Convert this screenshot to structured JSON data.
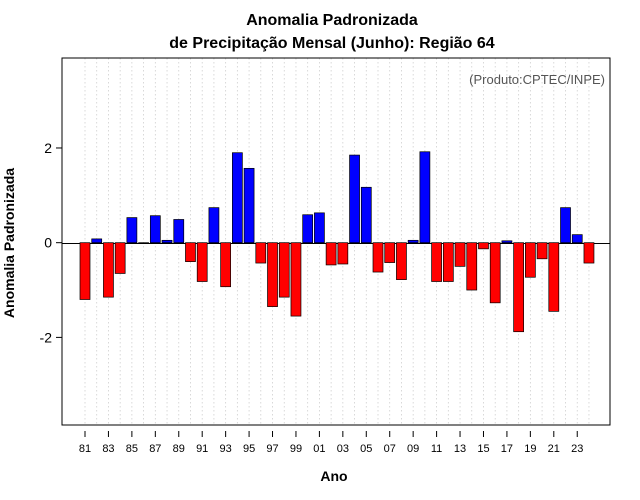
{
  "chart_data": {
    "type": "bar",
    "title": "Anomalia Padronizada",
    "subtitle": "de Precipitação Mensal (Junho): Região 64",
    "xlabel": "Ano",
    "ylabel": "Anomalia Padronizada",
    "annotation": "(Produto:CPTEC/INPE)",
    "ylim": [
      -3.85,
      3.9
    ],
    "yticks": [
      -2,
      0,
      2
    ],
    "ytick_labels": [
      "-2",
      "0",
      "2"
    ],
    "grid": "vertical dotted",
    "categories": [
      "81",
      "82",
      "83",
      "84",
      "85",
      "86",
      "87",
      "88",
      "89",
      "90",
      "91",
      "92",
      "93",
      "94",
      "95",
      "96",
      "97",
      "98",
      "99",
      "00",
      "01",
      "02",
      "03",
      "04",
      "05",
      "06",
      "07",
      "08",
      "09",
      "10",
      "11",
      "12",
      "13",
      "14",
      "15",
      "16",
      "17",
      "18",
      "19",
      "20",
      "21",
      "22",
      "23",
      "24"
    ],
    "xtick_labels": [
      "81",
      "83",
      "85",
      "87",
      "89",
      "91",
      "93",
      "95",
      "97",
      "99",
      "01",
      "03",
      "05",
      "07",
      "09",
      "11",
      "13",
      "15",
      "17",
      "19",
      "21",
      "23"
    ],
    "values": [
      -1.2,
      0.08,
      -1.15,
      -0.65,
      0.53,
      0.0,
      0.57,
      0.05,
      0.49,
      -0.4,
      -0.82,
      0.74,
      -0.93,
      1.9,
      1.57,
      -0.43,
      -1.35,
      -1.15,
      -1.55,
      0.59,
      0.63,
      -0.47,
      -0.45,
      1.85,
      1.17,
      -0.62,
      -0.42,
      -0.78,
      0.05,
      1.92,
      -0.82,
      -0.82,
      -0.5,
      -1.0,
      -0.13,
      -1.27,
      0.04,
      -1.88,
      -0.73,
      -0.34,
      -1.45,
      0.74,
      0.17,
      -0.43
    ],
    "colors": {
      "positive": "#0000ff",
      "negative": "#ff0000",
      "outline": "#000000"
    }
  }
}
